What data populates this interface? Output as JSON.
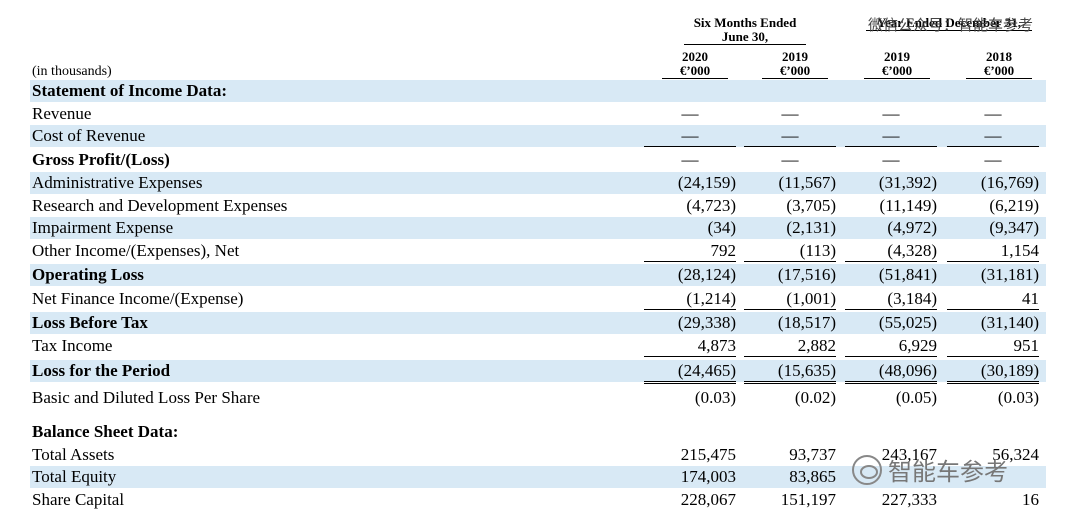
{
  "header": {
    "group1": "Six Months Ended June 30,",
    "group2": "Year Ended December 31,",
    "columns": [
      {
        "year": "2020",
        "unit": "€’000"
      },
      {
        "year": "2019",
        "unit": "€’000"
      },
      {
        "year": "2019",
        "unit": "€’000"
      },
      {
        "year": "2018",
        "unit": "€’000"
      }
    ],
    "unit_note": "(in thousands)"
  },
  "rows": [
    {
      "label": "Statement of Income Data:",
      "bold": true,
      "shaded": true,
      "values": [
        "",
        "",
        "",
        ""
      ]
    },
    {
      "label": "Revenue",
      "bold": false,
      "shaded": false,
      "values": [
        "—",
        "—",
        "—",
        "—"
      ]
    },
    {
      "label": "Cost of Revenue",
      "bold": false,
      "shaded": true,
      "values": [
        "—",
        "—",
        "—",
        "—"
      ]
    },
    {
      "label": "Gross Profit/(Loss)",
      "bold": true,
      "shaded": false,
      "values": [
        "—",
        "—",
        "—",
        "—"
      ]
    },
    {
      "label": "Administrative Expenses",
      "bold": false,
      "shaded": true,
      "values": [
        "(24,159)",
        "(11,567)",
        "(31,392)",
        "(16,769)"
      ]
    },
    {
      "label": "Research and Development Expenses",
      "bold": false,
      "shaded": false,
      "values": [
        "(4,723)",
        "(3,705)",
        "(11,149)",
        "(6,219)"
      ]
    },
    {
      "label": "Impairment Expense",
      "bold": false,
      "shaded": true,
      "values": [
        "(34)",
        "(2,131)",
        "(4,972)",
        "(9,347)"
      ]
    },
    {
      "label": "Other Income/(Expenses), Net",
      "bold": false,
      "shaded": false,
      "values": [
        "792",
        "(113)",
        "(4,328)",
        "1,154"
      ]
    },
    {
      "label": "Operating Loss",
      "bold": true,
      "shaded": true,
      "values": [
        "(28,124)",
        "(17,516)",
        "(51,841)",
        "(31,181)"
      ]
    },
    {
      "label": "Net Finance Income/(Expense)",
      "bold": false,
      "shaded": false,
      "values": [
        "(1,214)",
        "(1,001)",
        "(3,184)",
        "41"
      ]
    },
    {
      "label": "Loss Before Tax",
      "bold": true,
      "shaded": true,
      "values": [
        "(29,338)",
        "(18,517)",
        "(55,025)",
        "(31,140)"
      ]
    },
    {
      "label": "Tax Income",
      "bold": false,
      "shaded": false,
      "values": [
        "4,873",
        "2,882",
        "6,929",
        "951"
      ]
    },
    {
      "label": "Loss for the Period",
      "bold": true,
      "shaded": true,
      "values": [
        "(24,465)",
        "(15,635)",
        "(48,096)",
        "(30,189)"
      ]
    },
    {
      "label": "Basic and Diluted Loss Per Share",
      "bold": false,
      "shaded": false,
      "values": [
        "(0.03)",
        "(0.02)",
        "(0.05)",
        "(0.03)"
      ]
    },
    {
      "label": "Balance Sheet Data:",
      "bold": true,
      "shaded": false,
      "values": [
        "",
        "",
        "",
        ""
      ]
    },
    {
      "label": "Total Assets",
      "bold": false,
      "shaded": false,
      "values": [
        "215,475",
        "93,737",
        "243,167",
        "56,324"
      ]
    },
    {
      "label": "Total Equity",
      "bold": false,
      "shaded": true,
      "values": [
        "174,003",
        "83,865",
        "",
        ""
      ]
    },
    {
      "label": "Share Capital",
      "bold": false,
      "shaded": false,
      "values": [
        "228,067",
        "151,197",
        "227,333",
        "16"
      ]
    }
  ],
  "watermark": {
    "top": "微信公众号：智能车参考",
    "bottom": "智能车参考"
  }
}
